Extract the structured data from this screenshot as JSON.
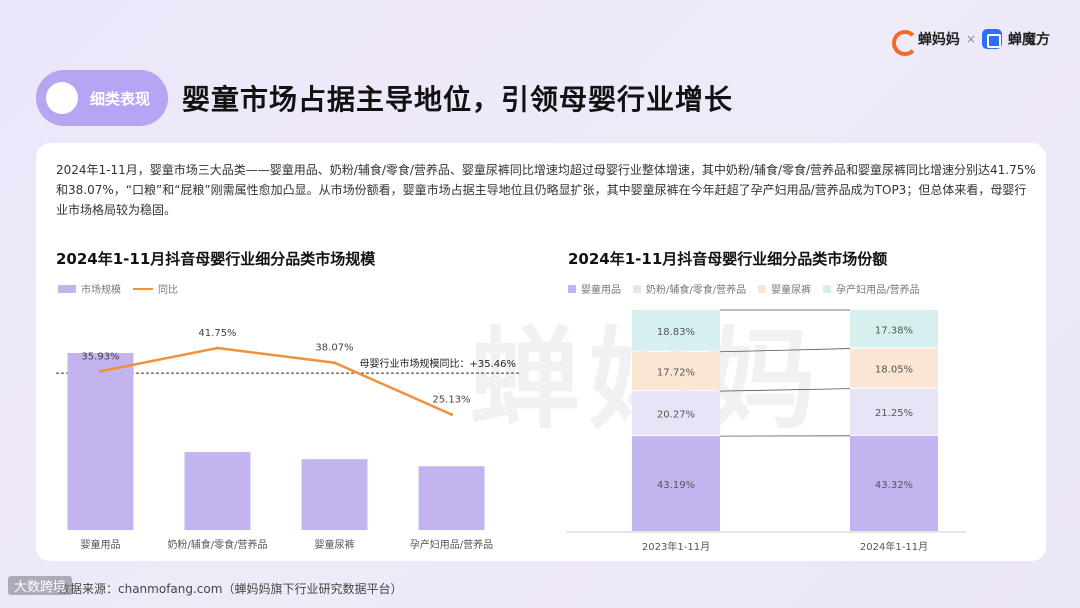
{
  "brand": {
    "name1": "蝉妈妈",
    "sep": "×",
    "name2": "蝉魔方"
  },
  "tag": {
    "label": "细类表现"
  },
  "headline": "婴童市场占据主导地位，引领母婴行业增长",
  "intro": "2024年1-11月，婴童市场三大品类——婴童用品、奶粉/辅食/零食/营养品、婴童尿裤同比增速均超过母婴行业整体增速，其中奶粉/辅食/零食/营养品和婴童尿裤同比增速分别达41.75%和38.07%，“口粮”和“屁粮”刚需属性愈加凸显。从市场份额看，婴童市场占据主导地位且仍略显扩张，其中婴童尿裤在今年赶超了孕产妇用品/营养品成为TOP3；但总体来看，母婴行业市场格局较为稳固。",
  "watermark": "蝉妈妈",
  "footer": "数据来源：chanmofang.com（蝉妈妈旗下行业研究数据平台）",
  "corner": "大数跨境",
  "colors": {
    "bar": "#c3b4f0",
    "line": "#f0913a",
    "seg1": "#c3b4f0",
    "seg2": "#e8e4f7",
    "seg3": "#fbe6d3",
    "seg4": "#d6f0ef"
  },
  "chart_data": [
    {
      "type": "bar",
      "title": "2024年1-11月抖音母婴行业细分品类市场规模",
      "legend": [
        "市场规模",
        "同比"
      ],
      "categories": [
        "婴童用品",
        "奶粉/辅食/零食/营养品",
        "婴童尿裤",
        "孕产妇用品/营养品"
      ],
      "series": [
        {
          "name": "市场规模",
          "kind": "bar",
          "values": [
            1.0,
            0.44,
            0.4,
            0.36
          ],
          "unit": "relative"
        },
        {
          "name": "同比",
          "kind": "line",
          "values": [
            35.93,
            41.75,
            38.07,
            25.13
          ],
          "labels": [
            "35.93%",
            "41.75%",
            "38.07%",
            "25.13%"
          ]
        }
      ],
      "reference_line": {
        "label": "母婴行业市场规模同比：+35.46%",
        "value": 35.46
      },
      "y2lim": [
        0,
        50
      ]
    },
    {
      "type": "bar",
      "stacked": true,
      "percent": true,
      "title": "2024年1-11月抖音母婴行业细分品类市场份额",
      "legend": [
        "婴童用品",
        "奶粉/辅食/零食/营养品",
        "婴童尿裤",
        "孕产妇用品/营养品"
      ],
      "categories": [
        "2023年1-11月",
        "2024年1-11月"
      ],
      "series": [
        {
          "name": "婴童用品",
          "values": [
            43.19,
            43.32
          ],
          "labels": [
            "43.19%",
            "43.32%"
          ]
        },
        {
          "name": "奶粉/辅食/零食/营养品",
          "values": [
            20.27,
            21.25
          ],
          "labels": [
            "20.27%",
            "21.25%"
          ]
        },
        {
          "name": "婴童尿裤",
          "values": [
            17.72,
            18.05
          ],
          "labels": [
            "17.72%",
            "18.05%"
          ]
        },
        {
          "name": "孕产妇用品/营养品",
          "values": [
            18.83,
            17.38
          ],
          "labels": [
            "18.83%",
            "17.38%"
          ]
        }
      ]
    }
  ]
}
